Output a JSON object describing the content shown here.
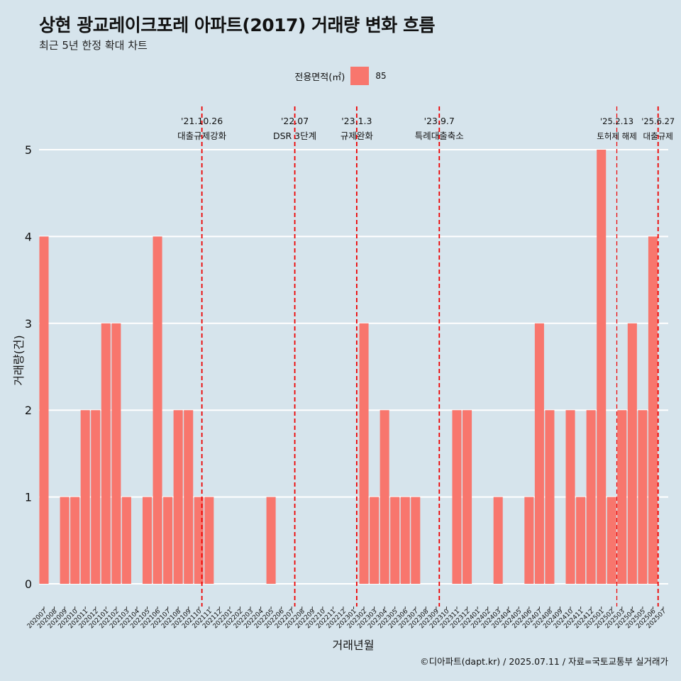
{
  "title": "상현 광교레이크포레 아파트(2017) 거래량 변화 흐름",
  "subtitle": "최근 5년 한정 확대 차트",
  "legend": {
    "title": "전용면적(㎡)",
    "label": "85",
    "color": "#f8766d"
  },
  "caption": "©디아파트(dapt.kr) / 2025.07.11 / 자료=국토교통부 실거래가",
  "chart_data": {
    "type": "bar",
    "xlabel": "거래년월",
    "ylabel": "거래량(건)",
    "ylim": [
      0,
      5
    ],
    "yticks": [
      0,
      1,
      2,
      3,
      4,
      5
    ],
    "grid": true,
    "legend_position": "top",
    "bar_color": "#f8766d",
    "categories": [
      "202007",
      "202008",
      "202009",
      "202010",
      "202011",
      "202012",
      "202101",
      "202102",
      "202103",
      "202104",
      "202105",
      "202106",
      "202107",
      "202108",
      "202109",
      "202110",
      "202111",
      "202112",
      "202201",
      "202202",
      "202203",
      "202204",
      "202205",
      "202206",
      "202207",
      "202208",
      "202209",
      "202210",
      "202211",
      "202212",
      "202301",
      "202302",
      "202303",
      "202304",
      "202305",
      "202306",
      "202307",
      "202308",
      "202309",
      "202310",
      "202311",
      "202312",
      "202401",
      "202402",
      "202403",
      "202404",
      "202405",
      "202406",
      "202407",
      "202408",
      "202409",
      "202410",
      "202411",
      "202412",
      "202501",
      "202502",
      "202503",
      "202504",
      "202505",
      "202506",
      "202507"
    ],
    "series": [
      {
        "values": [
          4,
          0,
          1,
          1,
          2,
          2,
          3,
          3,
          1,
          0,
          1,
          4,
          1,
          2,
          2,
          1,
          1,
          0,
          0,
          0,
          0,
          0,
          1,
          0,
          0,
          0,
          0,
          0,
          0,
          0,
          0,
          3,
          1,
          2,
          1,
          1,
          1,
          0,
          0,
          0,
          2,
          2,
          0,
          0,
          1,
          0,
          0,
          1,
          3,
          2,
          0,
          2,
          1,
          2,
          5,
          1,
          2,
          3,
          2,
          4,
          0
        ]
      }
    ],
    "annotations": [
      {
        "date": "'21.10.26",
        "label": "대출규제강화",
        "position": 15.3
      },
      {
        "date": "'22.07",
        "label": "DSR 3단계",
        "position": 24.3
      },
      {
        "date": "'23.1.3",
        "label": "규제완화",
        "position": 30.3
      },
      {
        "date": "'23.9.7",
        "label": "특례대출축소",
        "position": 38.3
      },
      {
        "date": "'25.2.13",
        "label": "토허제 해제",
        "position": 55.5
      },
      {
        "date": "'25.6.27",
        "label": "대출규제",
        "position": 59.5
      }
    ]
  }
}
